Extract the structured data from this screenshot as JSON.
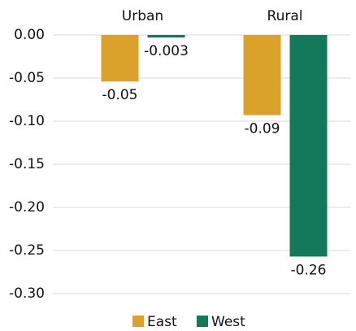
{
  "chart_data": {
    "type": "bar",
    "categories": [
      "Urban",
      "Rural"
    ],
    "series": [
      {
        "name": "East",
        "color": "#daa12b",
        "values": [
          -0.054,
          -0.093
        ],
        "value_labels": [
          "-0.05",
          "-0.09"
        ]
      },
      {
        "name": "West",
        "color": "#14785a",
        "values": [
          -0.003,
          -0.257
        ],
        "value_labels": [
          "-0.003",
          "-0.26"
        ]
      }
    ],
    "ylim": [
      -0.3,
      0
    ],
    "yticks": [
      {
        "value": 0,
        "label": "0.00"
      },
      -0.05,
      {
        "value": -0.1,
        "label": "-0.10"
      },
      -0.15,
      {
        "value": -0.2,
        "label": "-0.20"
      },
      -0.25,
      {
        "value": -0.3,
        "label": "-0.30"
      }
    ],
    "grid": true,
    "legend": "bottom"
  }
}
